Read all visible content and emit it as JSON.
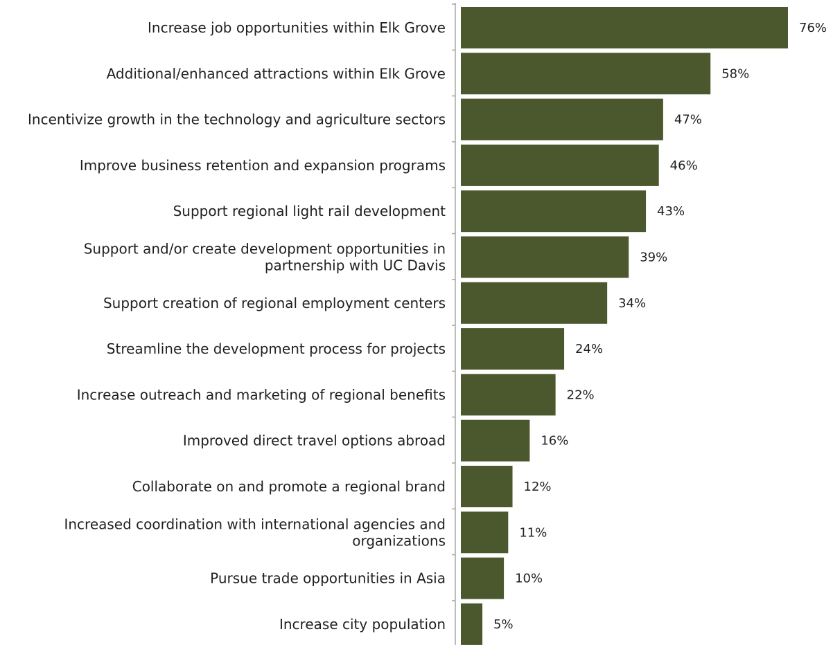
{
  "chart_data": {
    "type": "bar",
    "orientation": "horizontal",
    "categories": [
      "Increase job opportunities within Elk Grove",
      "Additional/enhanced attractions within Elk Grove",
      "Incentivize growth in the technology and agriculture sectors",
      "Improve business retention and expansion programs",
      "Support regional light rail development",
      "Support and/or create development opportunities in partnership with UC Davis",
      "Support creation of regional employment centers",
      "Streamline the development process for projects",
      "Increase outreach and marketing of regional benefits",
      "Improved direct travel options abroad",
      "Collaborate on and promote a regional brand",
      "Increased coordination with international agencies and organizations",
      "Pursue trade opportunities in Asia",
      "Increase city population"
    ],
    "category_lines": [
      [
        "Increase job opportunities within Elk Grove"
      ],
      [
        "Additional/enhanced attractions within Elk Grove"
      ],
      [
        "Incentivize growth in the technology and agriculture sectors"
      ],
      [
        "Improve business retention and expansion programs"
      ],
      [
        "Support regional light rail development"
      ],
      [
        "Support and/or create development opportunities in",
        "partnership with UC Davis"
      ],
      [
        "Support creation of regional employment centers"
      ],
      [
        "Streamline the development process for projects"
      ],
      [
        "Increase outreach and marketing of regional benefits"
      ],
      [
        "Improved direct travel options abroad"
      ],
      [
        "Collaborate on and promote a regional brand"
      ],
      [
        "Increased coordination with international agencies and",
        "organizations"
      ],
      [
        "Pursue trade opportunities in Asia"
      ],
      [
        "Increase city population"
      ]
    ],
    "values": [
      76,
      58,
      47,
      46,
      43,
      39,
      34,
      24,
      22,
      16,
      12,
      11,
      10,
      5
    ],
    "value_labels": [
      "76%",
      "58%",
      "47%",
      "46%",
      "43%",
      "39%",
      "34%",
      "24%",
      "22%",
      "16%",
      "12%",
      "11%",
      "10%",
      "5%"
    ],
    "xlim": [
      0,
      76
    ],
    "bar_color": "#4b572c",
    "axis_color": "#a6a6a6",
    "text_color": "#1f1f1f",
    "grid": false,
    "legend": "none"
  }
}
